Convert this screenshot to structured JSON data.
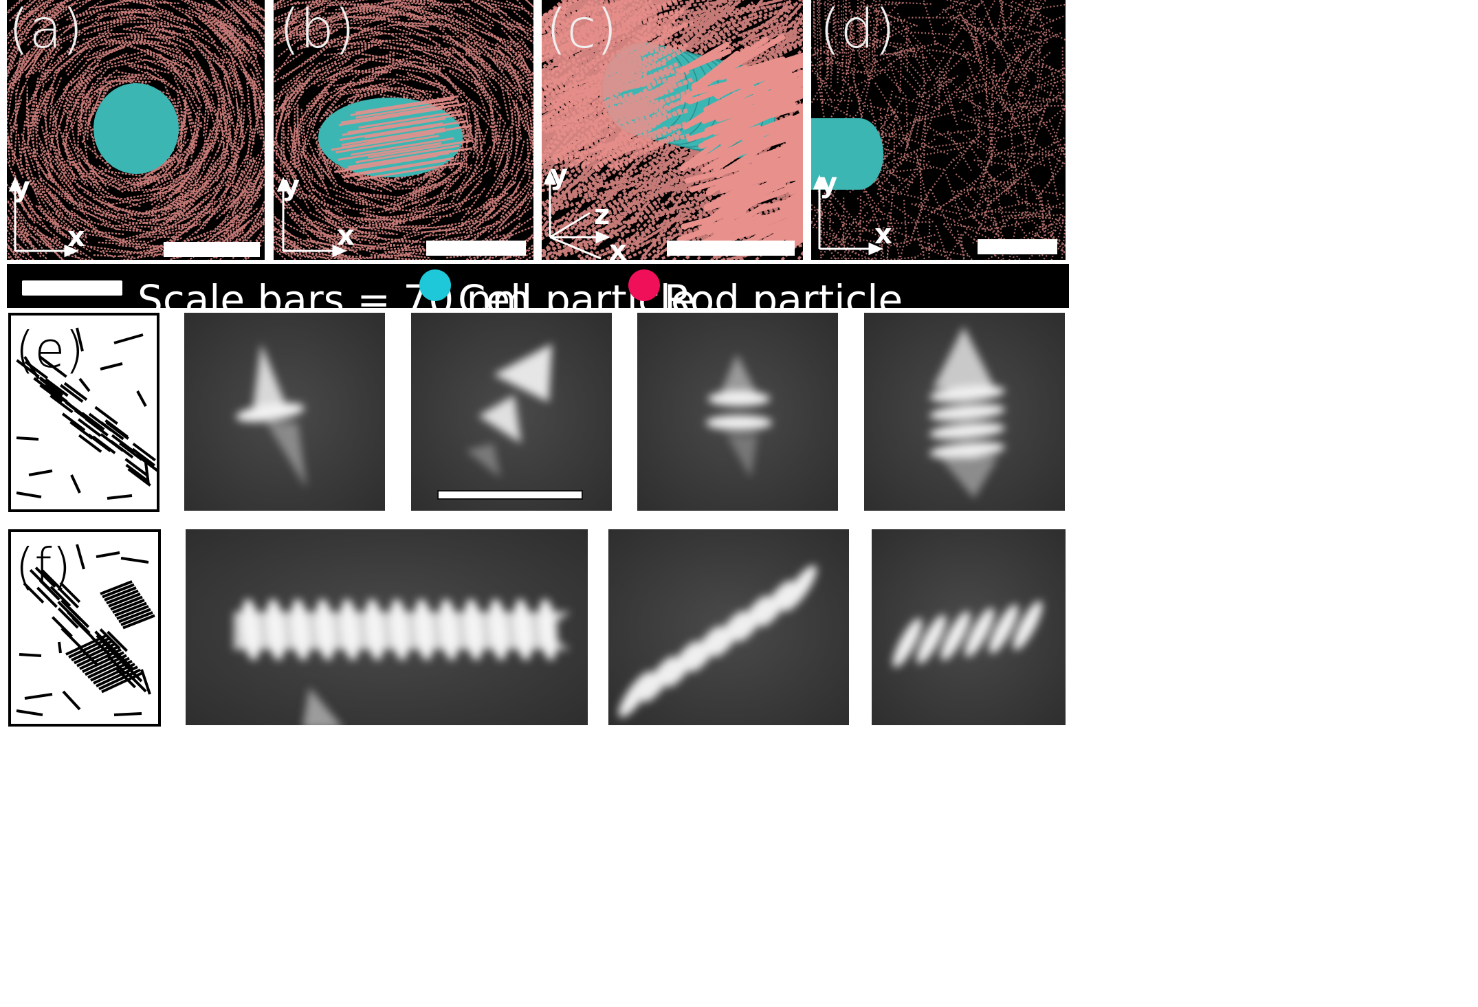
{
  "panels": {
    "a": "(a)",
    "b": "(b)",
    "c": "(c)",
    "d": "(d)",
    "e": "(e)",
    "f": "(f)"
  },
  "axes": {
    "x": "x",
    "y": "y",
    "z": "z"
  },
  "legend": {
    "scale_text": "Scale bars = 70 nm",
    "cell_label": "Cell particle",
    "rod_label": "Rod particle",
    "cell_color": "#1ec8d8",
    "rod_color": "#f0105a"
  },
  "colors": {
    "rod_sim": "#e8908c",
    "cell_sim": "#3bb6b3",
    "background": "#000000"
  }
}
